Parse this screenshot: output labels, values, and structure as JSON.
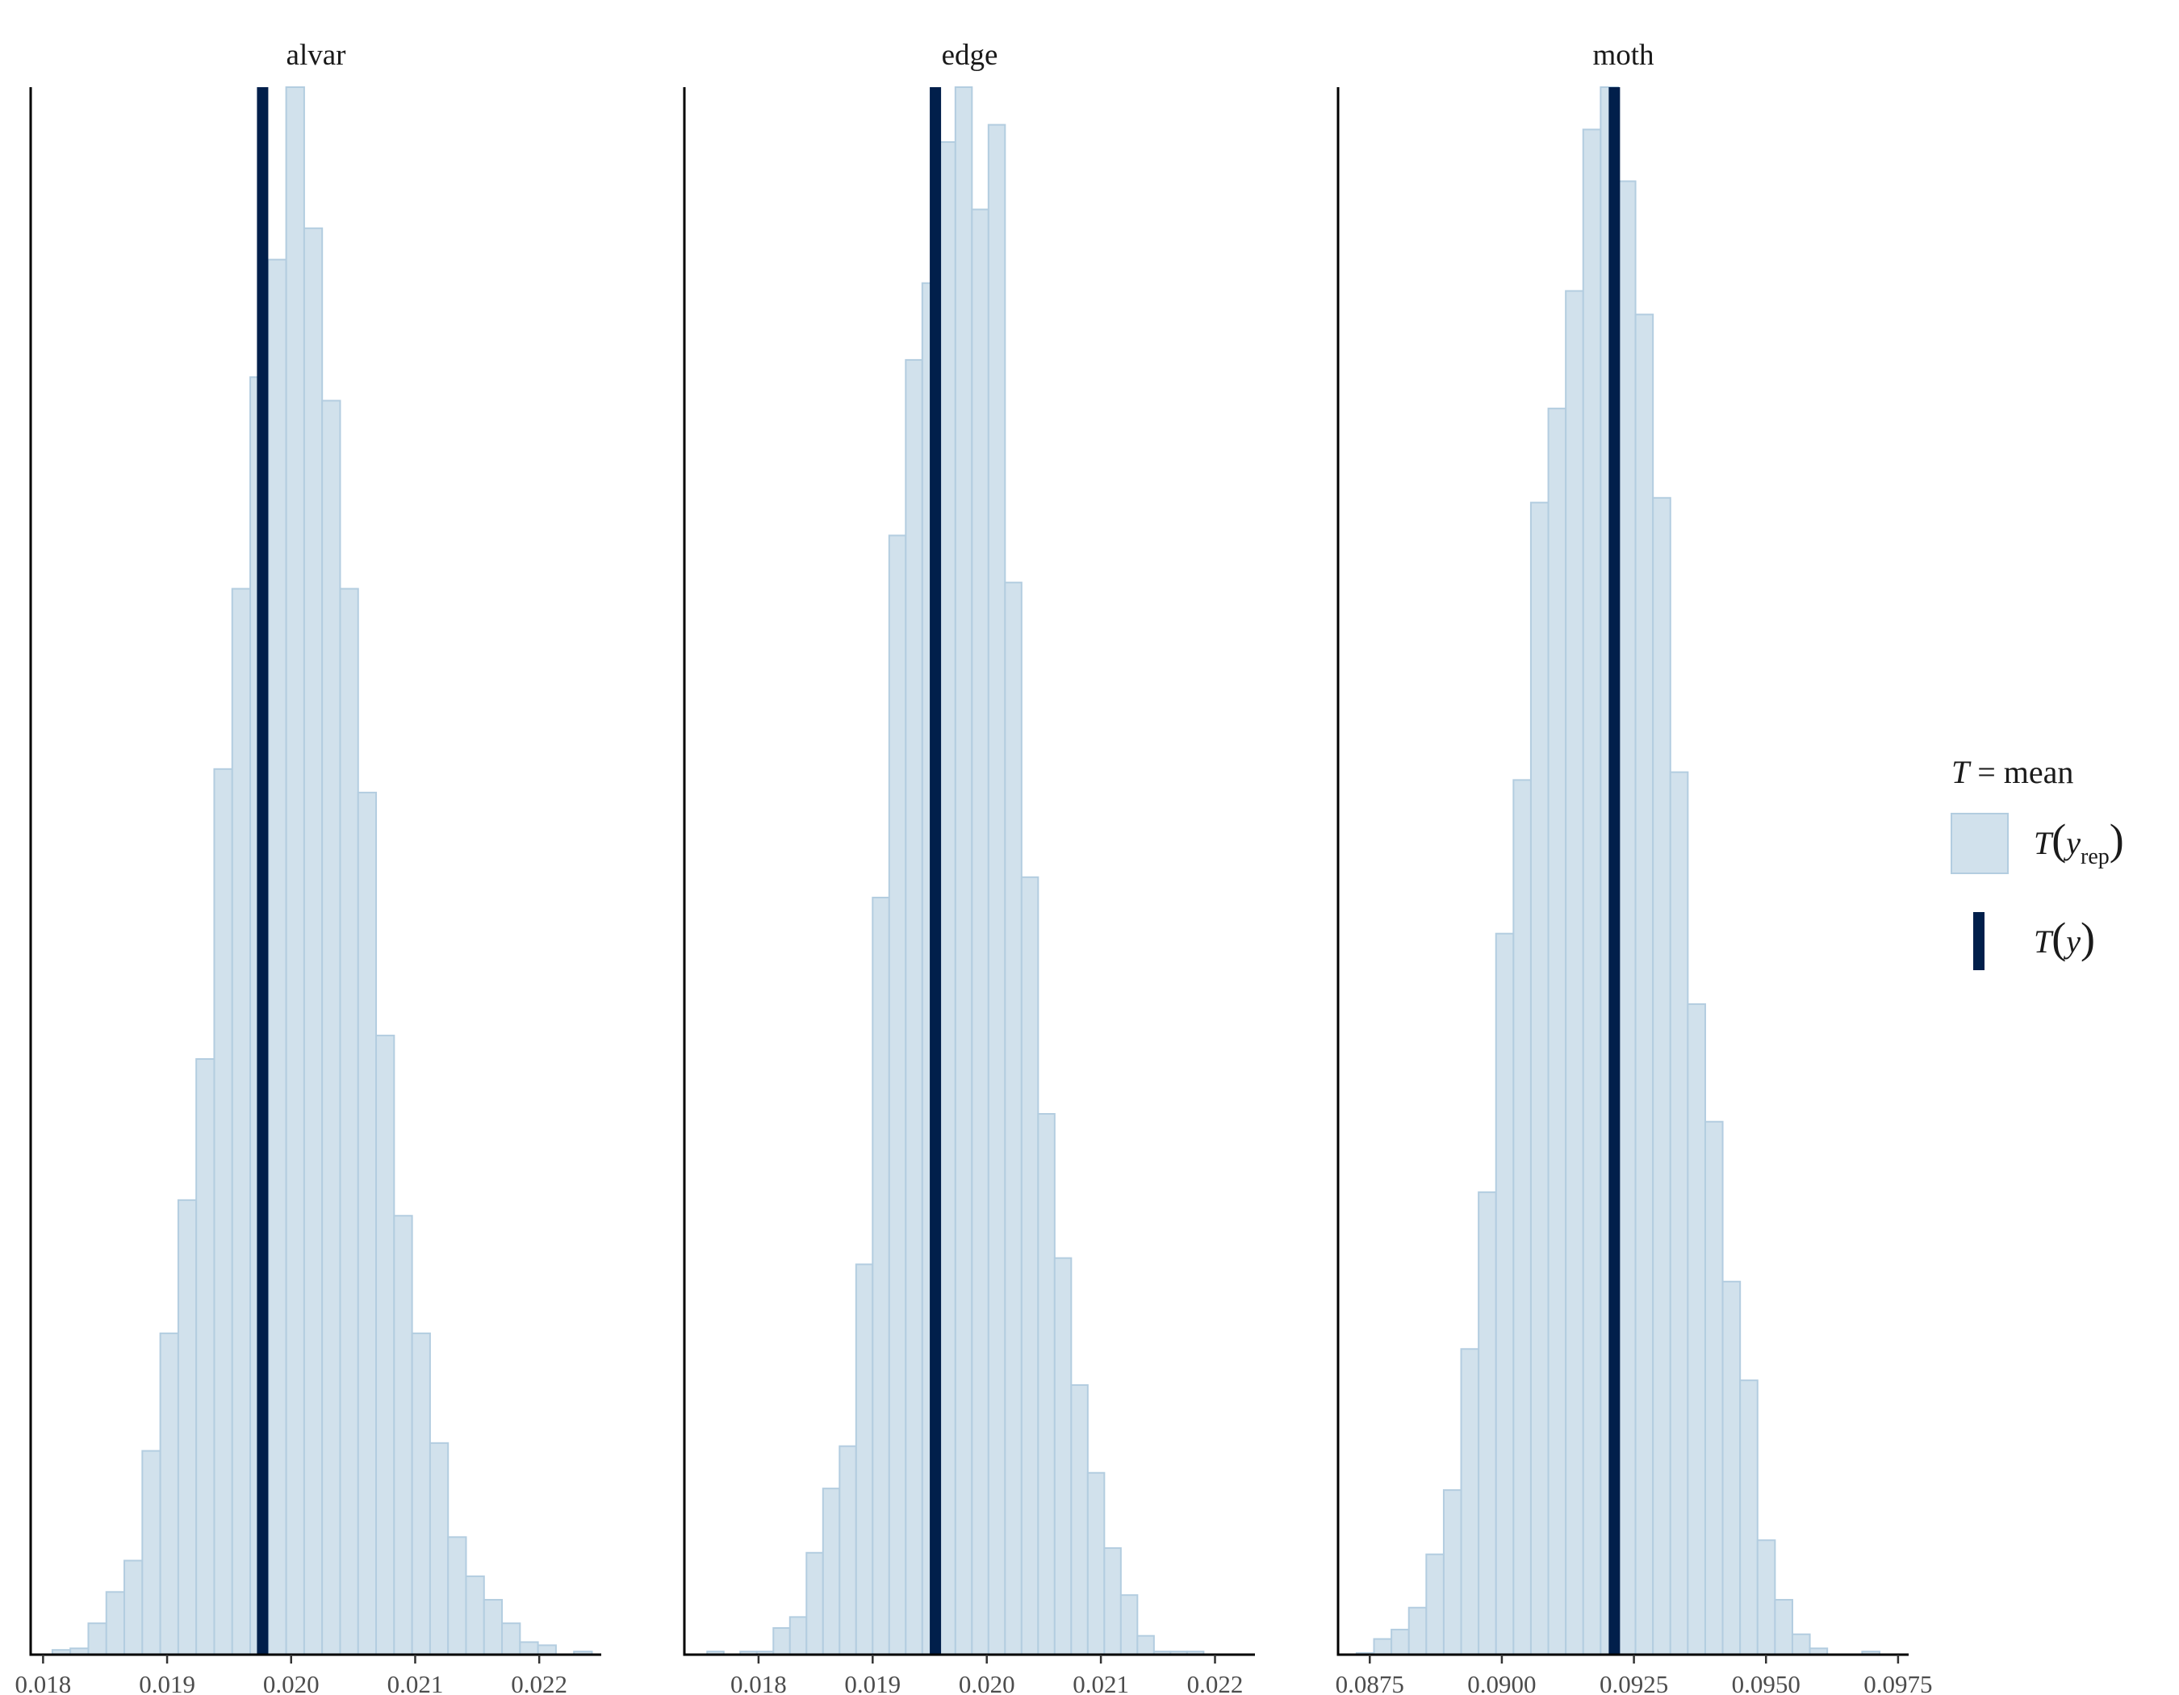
{
  "chart_data": [
    {
      "type": "histogram",
      "facet": "alvar",
      "x_ticks": [
        "0.018",
        "0.019",
        "0.020",
        "0.021",
        "0.022"
      ],
      "x_tick_values": [
        0.018,
        0.019,
        0.02,
        0.021,
        0.022
      ],
      "xlim": [
        0.0179,
        0.0225
      ],
      "observed_T_y": 0.01977,
      "bin_start": 0.018075,
      "bin_width": 0.000145,
      "counts": [
        0.3,
        0.4,
        2.0,
        4.0,
        6.0,
        13.0,
        20.5,
        29.0,
        38.0,
        56.5,
        68.0,
        81.5,
        89.0,
        100.0,
        91.0,
        80.0,
        68.0,
        55.0,
        39.5,
        28.0,
        20.5,
        13.5,
        7.5,
        5.0,
        3.5,
        2.0,
        0.8,
        0.6,
        0.0,
        0.2
      ]
    },
    {
      "type": "histogram",
      "facet": "edge",
      "x_ticks": [
        "0.018",
        "0.019",
        "0.020",
        "0.021",
        "0.022"
      ],
      "x_tick_values": [
        0.018,
        0.019,
        0.02,
        0.021,
        0.022
      ],
      "xlim": [
        0.01735,
        0.02235
      ],
      "observed_T_y": 0.01955,
      "bin_start": 0.01755,
      "bin_width": 0.000145,
      "counts": [
        0.2,
        0.0,
        0.2,
        0.2,
        1.7,
        2.4,
        6.5,
        10.6,
        13.3,
        24.9,
        48.3,
        71.4,
        82.6,
        87.5,
        96.5,
        100.0,
        92.2,
        97.6,
        68.4,
        49.6,
        34.5,
        25.3,
        17.2,
        11.6,
        6.8,
        3.8,
        1.2,
        0.2,
        0.2,
        0.2
      ]
    },
    {
      "type": "histogram",
      "facet": "moth",
      "x_ticks": [
        "0.0875",
        "0.0900",
        "0.0925",
        "0.0950",
        "0.0975"
      ],
      "x_tick_values": [
        0.0875,
        0.09,
        0.0925,
        0.095,
        0.0975
      ],
      "xlim": [
        0.0869,
        0.0977
      ],
      "observed_T_y": 0.09213,
      "bin_start": 0.08725,
      "bin_width": 0.00033,
      "counts": [
        0.1,
        1.0,
        1.6,
        3.0,
        6.4,
        10.5,
        19.5,
        29.5,
        46.0,
        55.8,
        73.5,
        79.5,
        87.0,
        97.3,
        100.0,
        94.0,
        85.5,
        73.8,
        56.3,
        41.5,
        34.0,
        23.8,
        17.5,
        7.3,
        3.5,
        1.3,
        0.4,
        0.0,
        0.0,
        0.2
      ]
    }
  ],
  "legend": {
    "title_symbol": "T",
    "title_text": " = mean",
    "rep_label": "T",
    "rep_subscript": "rep",
    "rep_var": "y",
    "obs_label": "T",
    "obs_var": "y"
  },
  "colors": {
    "hist_fill": "#d1e1ec",
    "hist_stroke": "#b3cde0",
    "observed_line": "#011f4b",
    "axis": "#000000"
  }
}
